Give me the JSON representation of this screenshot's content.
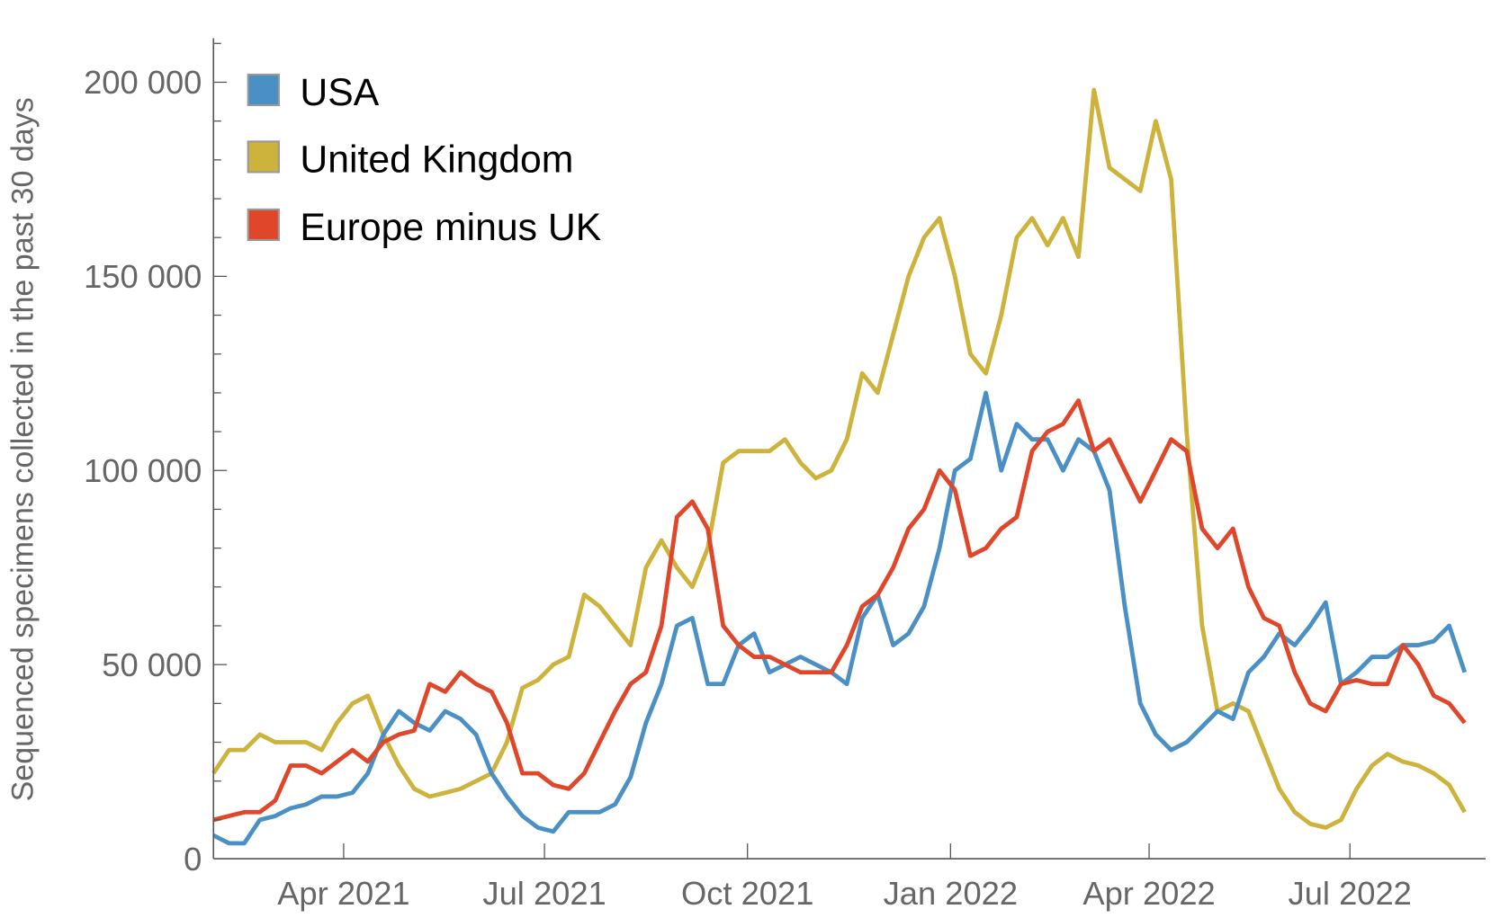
{
  "chart_data": {
    "type": "line",
    "title": "",
    "xlabel": "",
    "ylabel": "Sequenced specimens collected in the past 30 days",
    "ylim": [
      0,
      210000
    ],
    "y_ticks": [
      0,
      50000,
      100000,
      150000,
      200000
    ],
    "y_tick_labels": [
      "0",
      "50 000",
      "100 000",
      "150 000",
      "200 000"
    ],
    "x_start": "2021-02-01",
    "x_step_days": 7,
    "x_ticks_days": [
      59,
      150,
      242,
      334,
      424,
      515
    ],
    "x_tick_labels": [
      "Apr 2021",
      "Jul 2021",
      "Oct 2021",
      "Jan 2022",
      "Apr 2022",
      "Jul 2022"
    ],
    "legend_position": "top-left",
    "grid": false,
    "series": [
      {
        "name": "USA",
        "color": "#4a90c4",
        "values_thousands": [
          6,
          4,
          4,
          10,
          11,
          13,
          14,
          16,
          16,
          17,
          22,
          32,
          38,
          35,
          33,
          38,
          36,
          32,
          22,
          16,
          11,
          8,
          7,
          12,
          12,
          12,
          14,
          21,
          35,
          45,
          60,
          62,
          45,
          45,
          55,
          58,
          48,
          50,
          52,
          50,
          48,
          45,
          62,
          68,
          55,
          58,
          65,
          80,
          100,
          103,
          120,
          100,
          112,
          108,
          108,
          100,
          108,
          105,
          95,
          65,
          40,
          32,
          28,
          30,
          34,
          38,
          36,
          48,
          52,
          58,
          55,
          60,
          66,
          45,
          48,
          52,
          52,
          55,
          55,
          56,
          60,
          48
        ]
      },
      {
        "name": "United Kingdom",
        "color": "#cdb23c",
        "values_thousands": [
          22,
          28,
          28,
          32,
          30,
          30,
          30,
          28,
          35,
          40,
          42,
          32,
          24,
          18,
          16,
          17,
          18,
          20,
          22,
          30,
          44,
          46,
          50,
          52,
          68,
          65,
          60,
          55,
          75,
          82,
          75,
          70,
          80,
          102,
          105,
          105,
          105,
          108,
          102,
          98,
          100,
          108,
          125,
          120,
          135,
          150,
          160,
          165,
          150,
          130,
          125,
          140,
          160,
          165,
          158,
          165,
          155,
          198,
          178,
          175,
          172,
          190,
          175,
          110,
          60,
          38,
          40,
          38,
          28,
          18,
          12,
          9,
          8,
          10,
          18,
          24,
          27,
          25,
          24,
          22,
          19,
          12
        ]
      },
      {
        "name": "Europe minus UK",
        "color": "#e0472a",
        "values_thousands": [
          10,
          11,
          12,
          12,
          15,
          24,
          24,
          22,
          25,
          28,
          25,
          30,
          32,
          33,
          45,
          43,
          48,
          45,
          43,
          35,
          22,
          22,
          19,
          18,
          22,
          30,
          38,
          45,
          48,
          60,
          88,
          92,
          85,
          60,
          55,
          52,
          52,
          50,
          48,
          48,
          48,
          55,
          65,
          68,
          75,
          85,
          90,
          100,
          95,
          78,
          80,
          85,
          88,
          105,
          110,
          112,
          118,
          105,
          108,
          100,
          92,
          100,
          108,
          105,
          85,
          80,
          85,
          70,
          62,
          60,
          48,
          40,
          38,
          45,
          46,
          45,
          45,
          55,
          50,
          42,
          40,
          35
        ]
      }
    ]
  }
}
